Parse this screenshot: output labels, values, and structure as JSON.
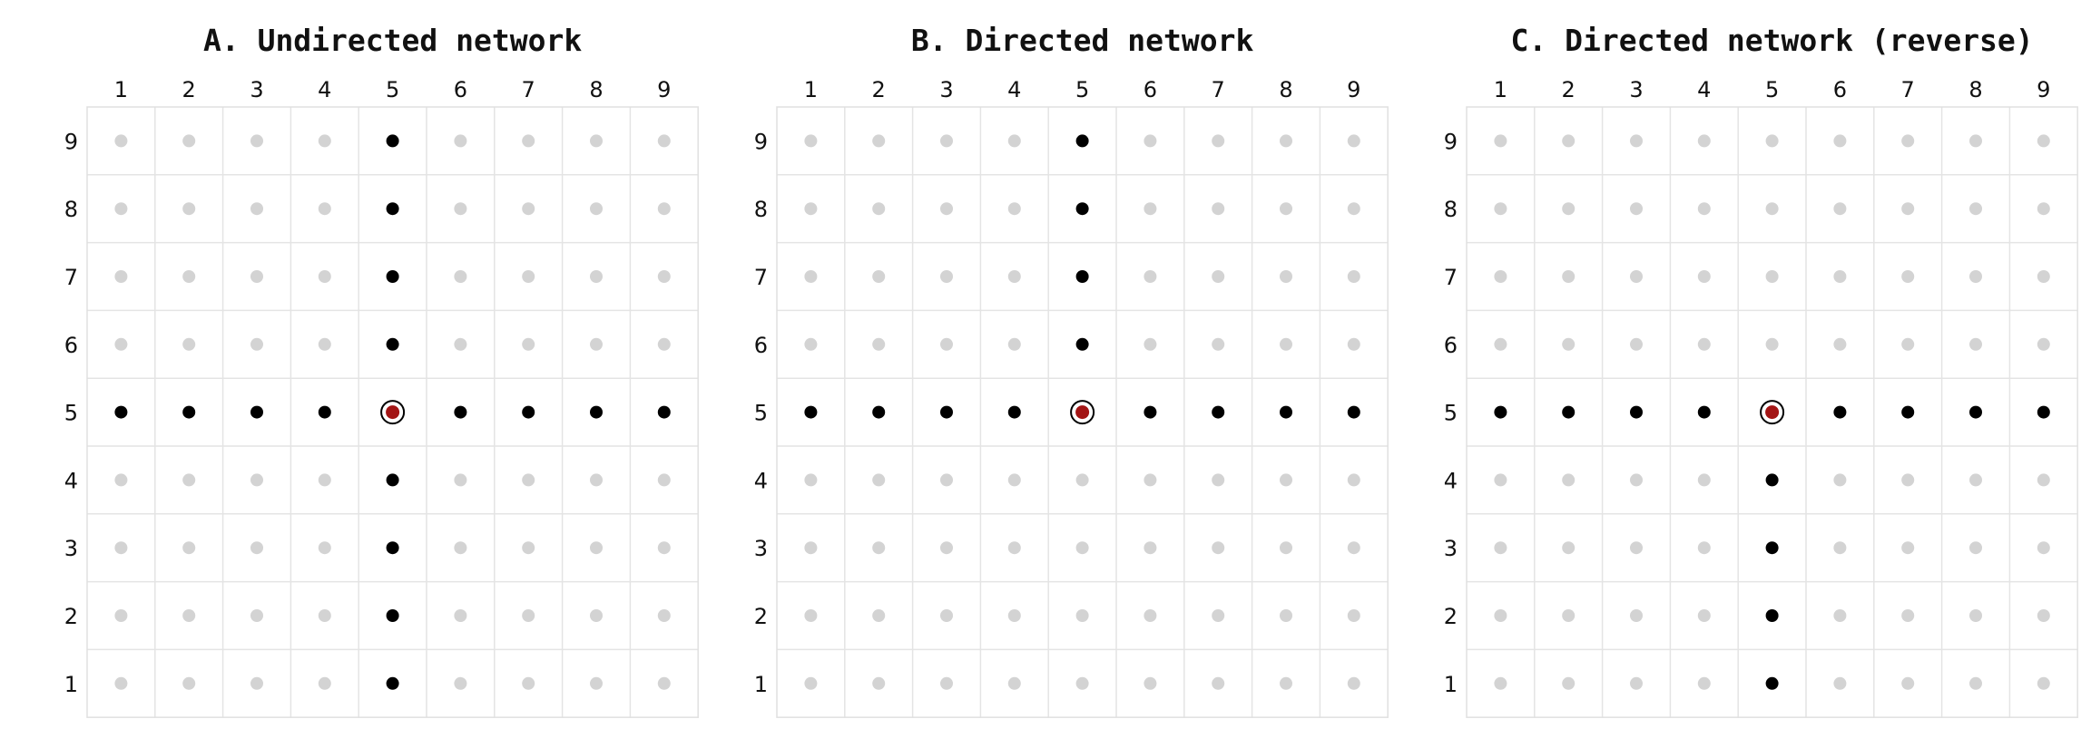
{
  "chart_data": [
    {
      "type": "scatter",
      "title": "A. Undirected network",
      "x_ticks": [
        "1",
        "2",
        "3",
        "4",
        "5",
        "6",
        "7",
        "8",
        "9"
      ],
      "y_ticks": [
        "9",
        "8",
        "7",
        "6",
        "5",
        "4",
        "3",
        "2",
        "1"
      ],
      "xlim": [
        1,
        9
      ],
      "ylim": [
        1,
        9
      ],
      "focal": {
        "x": 5,
        "y": 5
      },
      "neighbors": [
        {
          "x": 5,
          "y": 9
        },
        {
          "x": 5,
          "y": 8
        },
        {
          "x": 5,
          "y": 7
        },
        {
          "x": 5,
          "y": 6
        },
        {
          "x": 1,
          "y": 5
        },
        {
          "x": 2,
          "y": 5
        },
        {
          "x": 3,
          "y": 5
        },
        {
          "x": 4,
          "y": 5
        },
        {
          "x": 6,
          "y": 5
        },
        {
          "x": 7,
          "y": 5
        },
        {
          "x": 8,
          "y": 5
        },
        {
          "x": 9,
          "y": 5
        },
        {
          "x": 5,
          "y": 4
        },
        {
          "x": 5,
          "y": 3
        },
        {
          "x": 5,
          "y": 2
        },
        {
          "x": 5,
          "y": 1
        }
      ]
    },
    {
      "type": "scatter",
      "title": "B. Directed network",
      "x_ticks": [
        "1",
        "2",
        "3",
        "4",
        "5",
        "6",
        "7",
        "8",
        "9"
      ],
      "y_ticks": [
        "9",
        "8",
        "7",
        "6",
        "5",
        "4",
        "3",
        "2",
        "1"
      ],
      "xlim": [
        1,
        9
      ],
      "ylim": [
        1,
        9
      ],
      "focal": {
        "x": 5,
        "y": 5
      },
      "neighbors": [
        {
          "x": 5,
          "y": 9
        },
        {
          "x": 5,
          "y": 8
        },
        {
          "x": 5,
          "y": 7
        },
        {
          "x": 5,
          "y": 6
        },
        {
          "x": 1,
          "y": 5
        },
        {
          "x": 2,
          "y": 5
        },
        {
          "x": 3,
          "y": 5
        },
        {
          "x": 4,
          "y": 5
        },
        {
          "x": 6,
          "y": 5
        },
        {
          "x": 7,
          "y": 5
        },
        {
          "x": 8,
          "y": 5
        },
        {
          "x": 9,
          "y": 5
        }
      ]
    },
    {
      "type": "scatter",
      "title": "C. Directed network (reverse)",
      "x_ticks": [
        "1",
        "2",
        "3",
        "4",
        "5",
        "6",
        "7",
        "8",
        "9"
      ],
      "y_ticks": [
        "9",
        "8",
        "7",
        "6",
        "5",
        "4",
        "3",
        "2",
        "1"
      ],
      "xlim": [
        1,
        9
      ],
      "ylim": [
        1,
        9
      ],
      "focal": {
        "x": 5,
        "y": 5
      },
      "neighbors": [
        {
          "x": 1,
          "y": 5
        },
        {
          "x": 2,
          "y": 5
        },
        {
          "x": 3,
          "y": 5
        },
        {
          "x": 4,
          "y": 5
        },
        {
          "x": 6,
          "y": 5
        },
        {
          "x": 7,
          "y": 5
        },
        {
          "x": 8,
          "y": 5
        },
        {
          "x": 9,
          "y": 5
        },
        {
          "x": 5,
          "y": 4
        },
        {
          "x": 5,
          "y": 3
        },
        {
          "x": 5,
          "y": 2
        },
        {
          "x": 5,
          "y": 1
        }
      ]
    }
  ],
  "colors": {
    "inactive": "#d3d3d3",
    "neighbor": "#000000",
    "focal_fill": "#a31515",
    "focal_ring": "#000000",
    "grid": "#e4e4e4"
  }
}
